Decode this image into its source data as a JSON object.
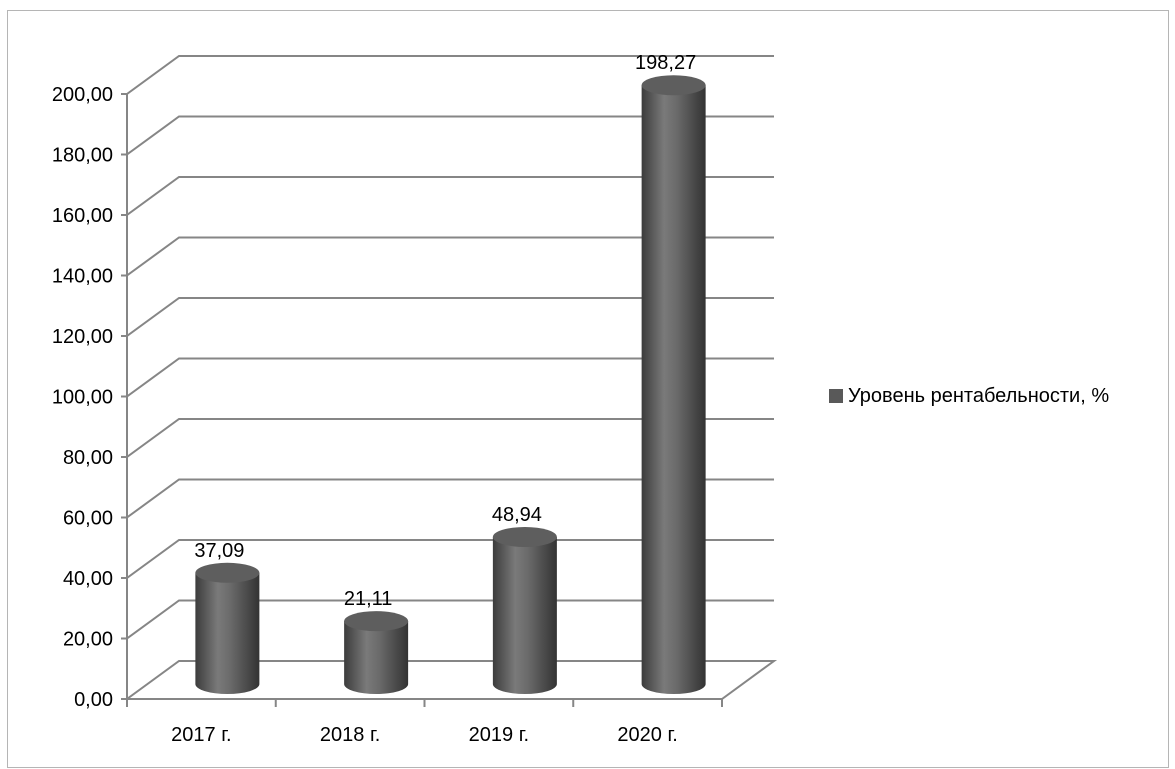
{
  "chart_data": {
    "type": "bar",
    "style": "3d-cylinder",
    "categories": [
      "2017 г.",
      "2018 г.",
      "2019 г.",
      "2020 г."
    ],
    "series": [
      {
        "name": "Уровень рентабельности, %",
        "values": [
          37.09,
          21.11,
          48.94,
          198.27
        ],
        "value_labels": [
          "37,09",
          "21,11",
          "48,94",
          "198,27"
        ],
        "color": "#595959"
      }
    ],
    "ylim": [
      0,
      200
    ],
    "y_ticks": [
      "0,00",
      "20,00",
      "40,00",
      "60,00",
      "80,00",
      "100,00",
      "120,00",
      "140,00",
      "160,00",
      "180,00",
      "200,00"
    ],
    "grid": true,
    "legend": "right",
    "title": "",
    "xlabel": "",
    "ylabel": ""
  }
}
